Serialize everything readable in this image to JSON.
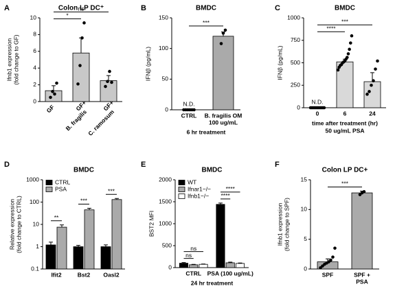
{
  "chart_data": [
    {
      "type": "bar",
      "panel": "A",
      "title": "Colon LP DC⁺",
      "ylabel": [
        "Ifnb1 expression",
        "(fold change to GF)"
      ],
      "categories": [
        [
          "GF"
        ],
        [
          "GF+",
          "B. fragilis"
        ],
        [
          "GF+",
          "C. ramosum"
        ]
      ],
      "rotate_labels": true,
      "series": [
        {
          "color": "#c8c8c8",
          "values": [
            1.3,
            5.8,
            2.5
          ],
          "errors": [
            0.6,
            1.8,
            0.6
          ],
          "points": [
            [
              0.5,
              1.2,
              0.9,
              2.2
            ],
            [
              2.1,
              4.3,
              7.6,
              9.4
            ],
            [
              1.8,
              2.4,
              3.6,
              2.3
            ]
          ]
        }
      ],
      "ylim": [
        0,
        10
      ],
      "yticks": [
        0,
        2,
        4,
        6,
        8,
        10
      ],
      "brackets": [
        {
          "text": "*",
          "pair": [
            0,
            1
          ]
        },
        {
          "text": "ns",
          "pair": [
            0,
            2
          ]
        }
      ]
    },
    {
      "type": "bar",
      "panel": "B",
      "title": "BMDC",
      "ylabel": [
        "IFNβ (pg/mL)"
      ],
      "categories": [
        [
          "CTRL"
        ],
        [
          "B. fragilis OM",
          "100 ug/mL"
        ]
      ],
      "xlabel": [
        "6 hr treatment"
      ],
      "nd_label": "N.D.",
      "series": [
        {
          "color": "#aaaaaa",
          "values": [
            0,
            120
          ],
          "errors": [
            0,
            7
          ],
          "points": [
            [
              0,
              0,
              0,
              0,
              0,
              0
            ],
            [
              108,
              125,
              130
            ]
          ]
        }
      ],
      "ylim": [
        0,
        150
      ],
      "yticks": [
        0,
        50,
        100,
        150
      ],
      "brackets": [
        {
          "text": "***",
          "pair": [
            0,
            1
          ]
        }
      ]
    },
    {
      "type": "bar",
      "panel": "C",
      "title": "BMDC",
      "ylabel": [
        "IFNβ (pg/mL)"
      ],
      "categories": [
        [
          "0"
        ],
        [
          "6"
        ],
        [
          "24"
        ]
      ],
      "xlabel": [
        "time after treatment (hr)",
        "50 ug/mL PSA"
      ],
      "nd_label": "N.D.",
      "series": [
        {
          "color": "#d9d9d9",
          "values": [
            0,
            510,
            290
          ],
          "errors": [
            0,
            30,
            100
          ],
          "points": [
            [
              0,
              0,
              0,
              0,
              0,
              0,
              0,
              0,
              0,
              0,
              0,
              0
            ],
            [
              420,
              450,
              470,
              480,
              500,
              510,
              520,
              540,
              560,
              600,
              650,
              720,
              800
            ],
            [
              150,
              180,
              250,
              300,
              430,
              520
            ]
          ]
        }
      ],
      "ylim": [
        0,
        1000
      ],
      "yticks": [
        0,
        250,
        500,
        750,
        1000
      ],
      "brackets": [
        {
          "text": "****",
          "pair": [
            0,
            1
          ]
        },
        {
          "text": "***",
          "pair": [
            0,
            2
          ]
        }
      ]
    },
    {
      "type": "bar",
      "panel": "D",
      "title": "BMDC",
      "ylabel": [
        "Relative expression",
        "(fold change to CTRL)"
      ],
      "categories": [
        [
          "Ifit2"
        ],
        [
          "Bst2"
        ],
        [
          "Oasl2"
        ]
      ],
      "log": true,
      "legend": "upper left",
      "series": [
        {
          "name": "CTRL",
          "color": "#000000",
          "values": [
            1.2,
            1.0,
            1.0
          ],
          "errors": [
            0.4,
            0.15,
            0.2
          ]
        },
        {
          "name": "PSA",
          "color": "#aaaaaa",
          "values": [
            7.5,
            45,
            130
          ],
          "errors": [
            2,
            8,
            15
          ]
        }
      ],
      "ylim": [
        0.1,
        1000
      ],
      "yticks": [
        0.1,
        1,
        10,
        100,
        1000
      ],
      "brackets": [
        {
          "text": "**",
          "category": 0,
          "pair": [
            0,
            1
          ]
        },
        {
          "text": "***",
          "category": 1,
          "pair": [
            0,
            1
          ]
        },
        {
          "text": "***",
          "category": 2,
          "pair": [
            0,
            1
          ]
        }
      ]
    },
    {
      "type": "bar",
      "panel": "E",
      "title": "BMDC",
      "ylabel": [
        "BST2 MFI"
      ],
      "categories": [
        [
          "CTRL"
        ],
        [
          "PSA (100 ug/mL)"
        ]
      ],
      "xlabel": [
        "24 hr treatment"
      ],
      "legend": "upper left",
      "series": [
        {
          "name": "WT",
          "color": "#000000",
          "values": [
            100,
            1440
          ],
          "errors": [
            15,
            30
          ]
        },
        {
          "name": "Ifnar1−/−",
          "color": "#aaaaaa",
          "values": [
            65,
            110
          ],
          "errors": [
            10,
            15
          ]
        },
        {
          "name": "Ifnb1−/−",
          "color": "#ffffff",
          "values": [
            75,
            95
          ],
          "errors": [
            8,
            10
          ]
        }
      ],
      "ylim": [
        0,
        2000
      ],
      "yticks": [
        0,
        500,
        1000,
        1500,
        2000
      ],
      "brackets": [
        {
          "text": "ns",
          "category": 0,
          "pair": [
            0,
            1
          ]
        },
        {
          "text": "ns",
          "category": 0,
          "pair": [
            0,
            2
          ]
        },
        {
          "text": "****",
          "category": 1,
          "pair": [
            0,
            1
          ]
        },
        {
          "text": "****",
          "category": 1,
          "pair": [
            0,
            2
          ]
        }
      ]
    },
    {
      "type": "bar",
      "panel": "F",
      "title": "Colon LP DC+",
      "ylabel": [
        "Ifnb1 expression",
        "(fold change to SPF)"
      ],
      "categories": [
        [
          "SPF"
        ],
        [
          "SPF +",
          "PSA"
        ]
      ],
      "series": [
        {
          "color": "#aaaaaa",
          "values": [
            1.2,
            12.8
          ],
          "errors": [
            0.5,
            0.3
          ],
          "points": [
            [
              0.2,
              0.5,
              0.8,
              1.0,
              1.2,
              1.5,
              2.0,
              3.5
            ],
            [
              12.5,
              12.8,
              13.0
            ]
          ]
        }
      ],
      "ylim": [
        0,
        15
      ],
      "yticks": [
        0,
        5,
        10,
        15
      ],
      "brackets": [
        {
          "text": "***",
          "pair": [
            0,
            1
          ]
        }
      ]
    }
  ]
}
